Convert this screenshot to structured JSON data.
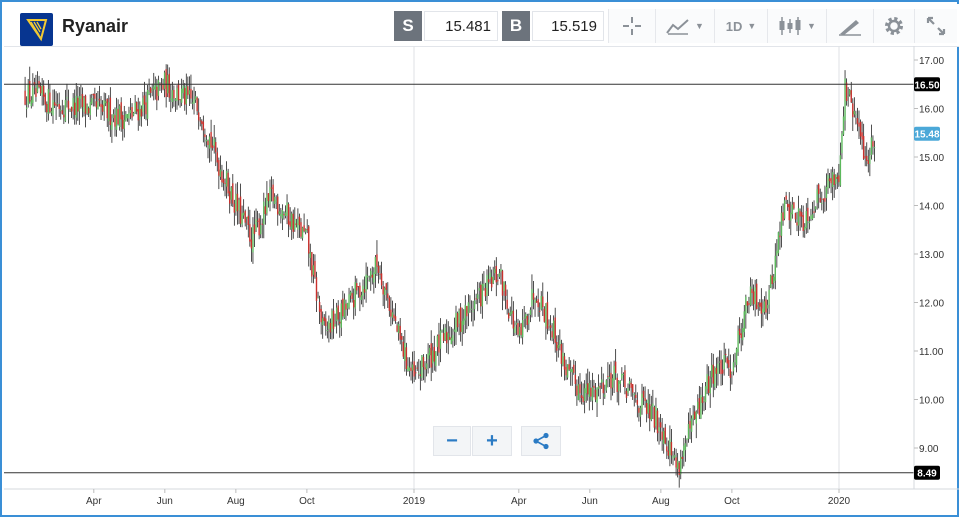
{
  "header": {
    "instrument_name": "Ryanair",
    "logo_icon": "ryanair-harp-logo",
    "sell_label": "S",
    "sell_price": "15.481",
    "buy_label": "B",
    "buy_price": "15.519",
    "timeframe_label": "1D",
    "tools": [
      "crosshair-icon",
      "chart-type-icon",
      "timeframe-dropdown",
      "candlestick-icon",
      "drawing-tool-icon",
      "gear-icon",
      "expand-icon"
    ]
  },
  "zoom_controls": {
    "minus_label": "−",
    "plus_label": "+",
    "share_icon": "share-icon"
  },
  "colors": {
    "up": "#5cb85c",
    "down": "#c9302c",
    "wick": "#222222",
    "frame": "#3a8fd6",
    "current_price_badge": "#4ba8d8",
    "level_badge": "#000000"
  },
  "chart_data": {
    "type": "candlestick",
    "x_axis": {
      "ticks": [
        "Apr",
        "Jun",
        "Aug",
        "Oct",
        "2019",
        "Apr",
        "Jun",
        "Aug",
        "Oct",
        "2020"
      ]
    },
    "y_axis": {
      "ticks": [
        "17.00",
        "16.00",
        "15.00",
        "14.00",
        "13.00",
        "12.00",
        "11.00",
        "10.00",
        "9.00"
      ],
      "range": [
        8.0,
        17.3
      ]
    },
    "grid": "vertical-at-year-boundaries",
    "horizontal_levels": [
      {
        "value": 16.5,
        "label": "16.50"
      },
      {
        "value": 8.49,
        "label": "8.49"
      }
    ],
    "current_price": {
      "value": 15.48,
      "label": "15.48"
    },
    "trend_waypoints": {
      "x_dates": [
        "2018-02-01",
        "2018-03-01",
        "2018-04-01",
        "2018-05-01",
        "2018-06-01",
        "2018-07-01",
        "2018-07-15",
        "2018-08-01",
        "2018-08-15",
        "2018-09-01",
        "2018-10-01",
        "2018-10-15",
        "2018-11-01",
        "2018-12-01",
        "2018-12-20",
        "2019-01-01",
        "2019-01-15",
        "2019-02-15",
        "2019-03-15",
        "2019-04-01",
        "2019-04-15",
        "2019-05-01",
        "2019-05-15",
        "2019-06-01",
        "2019-06-20",
        "2019-07-15",
        "2019-08-01",
        "2019-08-15",
        "2019-09-01",
        "2019-09-15",
        "2019-10-01",
        "2019-10-15",
        "2019-11-01",
        "2019-11-15",
        "2019-12-01",
        "2019-12-15",
        "2020-01-01",
        "2020-01-06",
        "2020-01-15",
        "2020-01-25",
        "2020-02-01"
      ],
      "close": [
        16.3,
        16.1,
        16.0,
        15.8,
        16.5,
        16.0,
        15.0,
        14.0,
        13.3,
        14.2,
        13.3,
        11.4,
        11.8,
        12.8,
        11.2,
        10.4,
        10.9,
        11.8,
        12.6,
        11.2,
        12.3,
        11.4,
        10.4,
        10.1,
        10.5,
        9.9,
        9.5,
        8.6,
        9.7,
        10.6,
        10.7,
        12.1,
        12.0,
        14.0,
        13.7,
        14.2,
        14.7,
        16.4,
        15.8,
        14.9,
        15.5
      ]
    }
  }
}
